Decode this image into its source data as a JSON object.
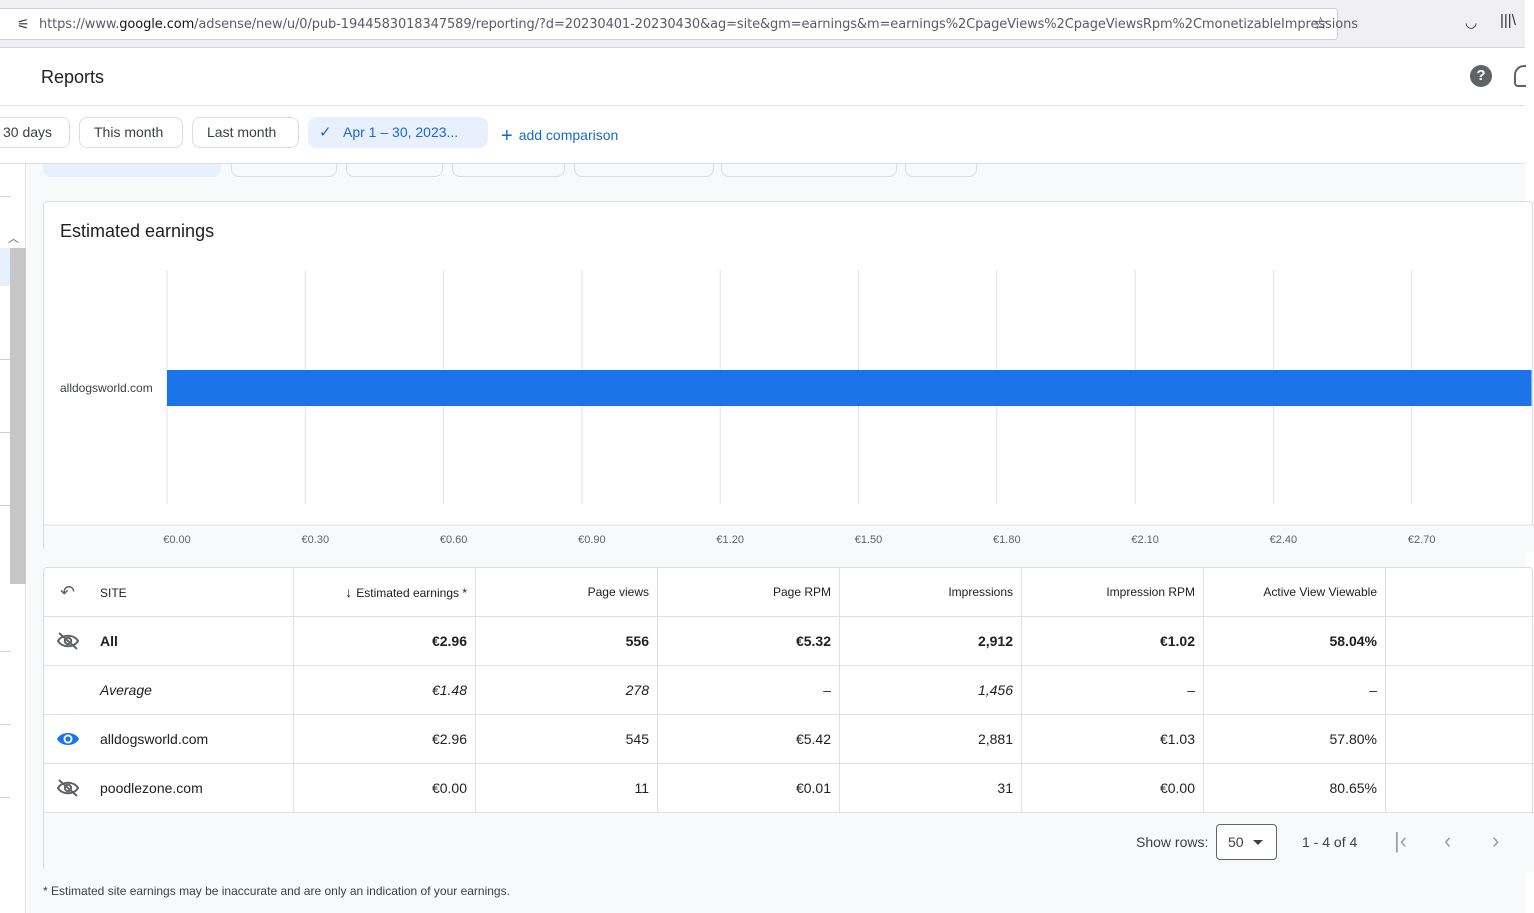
{
  "browser": {
    "url_prefix": "https://www.",
    "url_domain": "google.com",
    "url_rest": "/adsense/new/u/0/pub-1944583018347589/reporting/?d=20230401-20230430&ag=site&gm=earnings&m=earnings%2CpageViews%2CpageViewsRpm%2CmonetizableImpressions"
  },
  "header": {
    "title": "Reports",
    "help_glyph": "?"
  },
  "date_filters": {
    "chips": [
      "30 days",
      "This month",
      "Last month"
    ],
    "selected": "Apr 1 – 30, 2023...",
    "add_comparison": "add comparison"
  },
  "chart": {
    "title": "Estimated earnings"
  },
  "chart_data": {
    "type": "bar",
    "orientation": "horizontal",
    "title": "Estimated earnings",
    "categories": [
      "alldogsworld.com"
    ],
    "values": [
      2.96
    ],
    "x_ticks": [
      "€0.00",
      "€0.30",
      "€0.60",
      "€0.90",
      "€1.20",
      "€1.50",
      "€1.80",
      "€2.10",
      "€2.40",
      "€2.70"
    ],
    "xlim": [
      0,
      2.96
    ],
    "grid": true,
    "color": "#1a73e8"
  },
  "table": {
    "headers": {
      "site": "SITE",
      "earnings": "Estimated earnings *",
      "page_views": "Page views",
      "page_rpm": "Page RPM",
      "impressions": "Impressions",
      "impression_rpm": "Impression RPM",
      "active_view": "Active View Viewable"
    },
    "rows": [
      {
        "site": "All",
        "earnings": "€2.96",
        "page_views": "556",
        "page_rpm": "€5.32",
        "impressions": "2,912",
        "impression_rpm": "€1.02",
        "active_view": "58.04%"
      },
      {
        "site": "Average",
        "earnings": "€1.48",
        "page_views": "278",
        "page_rpm": "–",
        "impressions": "1,456",
        "impression_rpm": "–",
        "active_view": "–"
      },
      {
        "site": "alldogsworld.com",
        "earnings": "€2.96",
        "page_views": "545",
        "page_rpm": "€5.42",
        "impressions": "2,881",
        "impression_rpm": "€1.03",
        "active_view": "57.80%"
      },
      {
        "site": "poodlezone.com",
        "earnings": "€0.00",
        "page_views": "11",
        "page_rpm": "€0.01",
        "impressions": "31",
        "impression_rpm": "€0.00",
        "active_view": "80.65%"
      }
    ],
    "footer": {
      "show_rows_label": "Show rows:",
      "rows_value": "50",
      "range": "1 - 4 of 4"
    }
  },
  "footnote": "* Estimated site earnings may be inaccurate and are only an indication of your earnings."
}
